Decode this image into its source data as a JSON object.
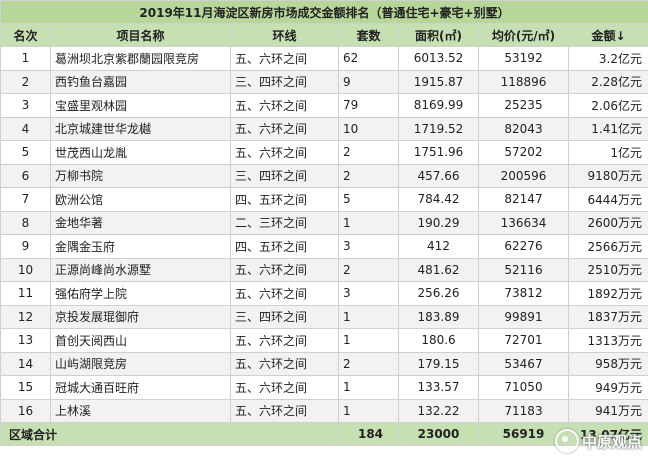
{
  "title": "2019年11月海淀区新房市场成交金额排名（普通住宅+豪宅+别墅）",
  "headers": {
    "rank": "名次",
    "name": "项目名称",
    "ring": "环线",
    "units": "套数",
    "area": "面积(㎡)",
    "price": "均价(元/㎡)",
    "amount": "金额↓"
  },
  "rows": [
    {
      "rank": "1",
      "name": "葛洲坝北京紫郡蘭园限竞房",
      "ring": "五、六环之间",
      "units": "62",
      "area": "6013.52",
      "price": "53192",
      "amount": "3.2亿元"
    },
    {
      "rank": "2",
      "name": "西钓鱼台嘉园",
      "ring": "三、四环之间",
      "units": "9",
      "area": "1915.87",
      "price": "118896",
      "amount": "2.28亿元"
    },
    {
      "rank": "3",
      "name": "宝盛里观林园",
      "ring": "五、六环之间",
      "units": "79",
      "area": "8169.99",
      "price": "25235",
      "amount": "2.06亿元"
    },
    {
      "rank": "4",
      "name": "北京城建世华龙樾",
      "ring": "五、六环之间",
      "units": "10",
      "area": "1719.52",
      "price": "82043",
      "amount": "1.41亿元"
    },
    {
      "rank": "5",
      "name": "世茂西山龙胤",
      "ring": "五、六环之间",
      "units": "2",
      "area": "1751.96",
      "price": "57202",
      "amount": "1亿元"
    },
    {
      "rank": "6",
      "name": "万柳书院",
      "ring": "三、四环之间",
      "units": "2",
      "area": "457.66",
      "price": "200596",
      "amount": "9180万元"
    },
    {
      "rank": "7",
      "name": "欧洲公馆",
      "ring": "四、五环之间",
      "units": "5",
      "area": "784.42",
      "price": "82147",
      "amount": "6444万元"
    },
    {
      "rank": "8",
      "name": "金地华著",
      "ring": "二、三环之间",
      "units": "1",
      "area": "190.29",
      "price": "136634",
      "amount": "2600万元"
    },
    {
      "rank": "9",
      "name": "金隅金玉府",
      "ring": "四、五环之间",
      "units": "3",
      "area": "412",
      "price": "62276",
      "amount": "2566万元"
    },
    {
      "rank": "10",
      "name": "正源尚峰尚水源墅",
      "ring": "五、六环之间",
      "units": "2",
      "area": "481.62",
      "price": "52116",
      "amount": "2510万元"
    },
    {
      "rank": "11",
      "name": "强佑府学上院",
      "ring": "五、六环之间",
      "units": "3",
      "area": "256.26",
      "price": "73812",
      "amount": "1892万元"
    },
    {
      "rank": "12",
      "name": "京投发展琨御府",
      "ring": "三、四环之间",
      "units": "1",
      "area": "183.89",
      "price": "99891",
      "amount": "1837万元"
    },
    {
      "rank": "13",
      "name": "首创天阅西山",
      "ring": "五、六环之间",
      "units": "1",
      "area": "180.6",
      "price": "72701",
      "amount": "1313万元"
    },
    {
      "rank": "14",
      "name": "山屿湖限竞房",
      "ring": "五、六环之间",
      "units": "2",
      "area": "179.15",
      "price": "53467",
      "amount": "958万元"
    },
    {
      "rank": "15",
      "name": "冠城大通百旺府",
      "ring": "五、六环之间",
      "units": "1",
      "area": "133.57",
      "price": "71050",
      "amount": "949万元"
    },
    {
      "rank": "16",
      "name": "上林溪",
      "ring": "五、六环之间",
      "units": "1",
      "area": "132.22",
      "price": "71183",
      "amount": "941万元"
    }
  ],
  "total": {
    "label": "区域合计",
    "units": "184",
    "area": "23000",
    "price": "56919",
    "amount": "13.07亿元"
  },
  "watermark": {
    "text": "中原观点",
    "icon": "circle-logo-icon"
  }
}
